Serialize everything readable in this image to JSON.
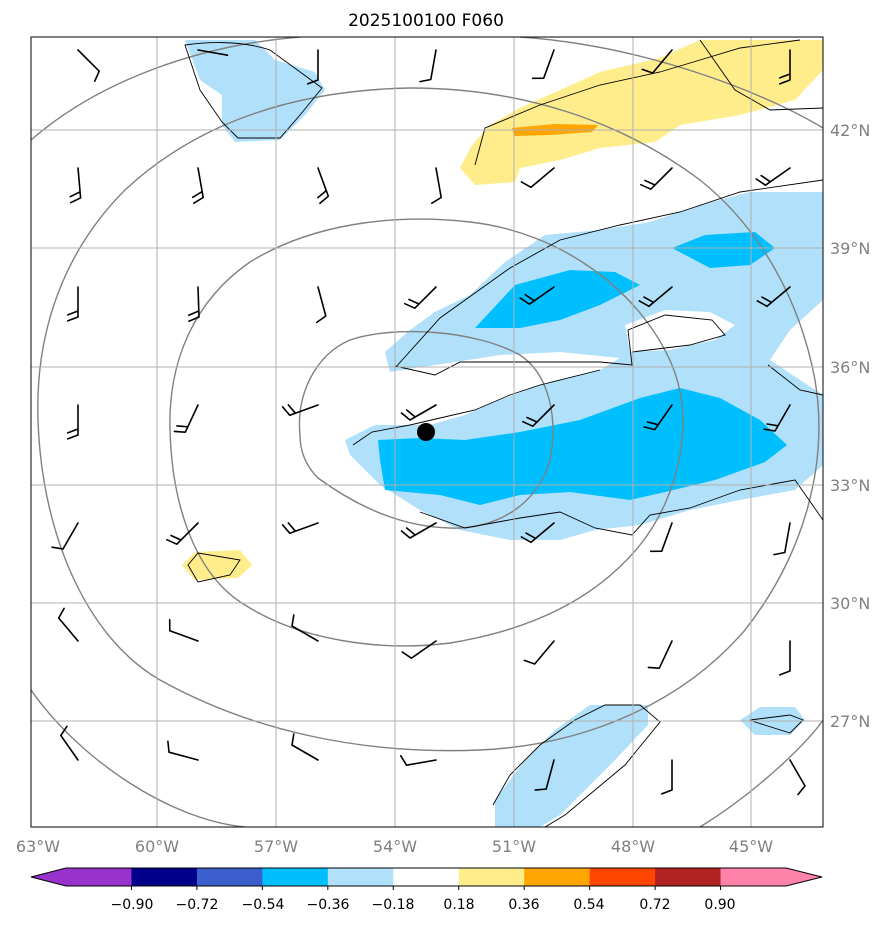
{
  "title": "2025100100 F060",
  "lon_labels": [
    "63°W",
    "60°W",
    "57°W",
    "54°W",
    "51°W",
    "48°W",
    "45°W"
  ],
  "lat_labels": [
    "42°N",
    "39°N",
    "36°N",
    "33°N",
    "30°N",
    "27°N"
  ],
  "colorbar": {
    "ticks": [
      "−0.90",
      "−0.72",
      "−0.54",
      "−0.36",
      "−0.18",
      "0.18",
      "0.36",
      "0.54",
      "0.72",
      "0.90"
    ],
    "colors": [
      "#9932cc",
      "#00008b",
      "#3a5fcd",
      "#00bfff",
      "#b0e0fa",
      "#ffffff",
      "#ffec8b",
      "#ffa500",
      "#ff4500",
      "#b22222",
      "#ff82ab"
    ]
  },
  "colors": {
    "light_blue": "#b0e0fa",
    "deep_sky_blue": "#00bfff",
    "light_yellow": "#ffec8b",
    "orange": "#ffa500",
    "contour_gray": "#808080",
    "contour_black": "#000000",
    "grid": "#b0b0b0"
  },
  "storm_center_marker": "black-dot"
}
